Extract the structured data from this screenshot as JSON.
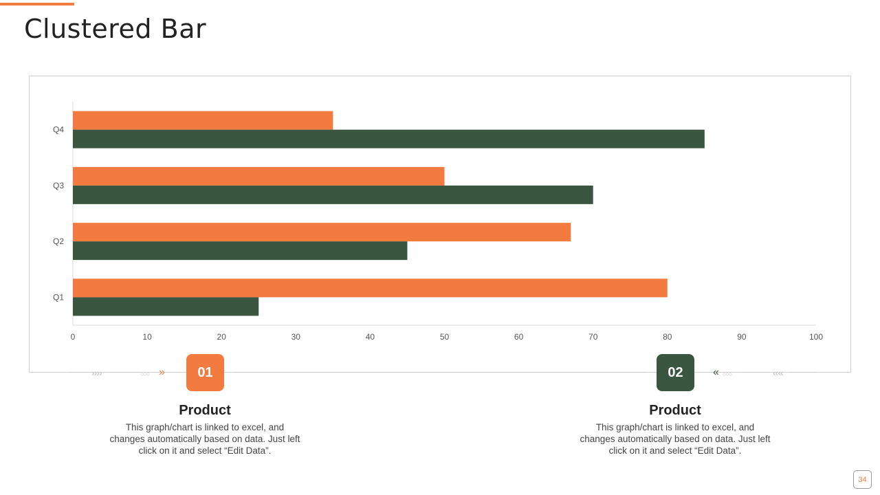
{
  "slide": {
    "title": "Clustered Bar",
    "page_number": "34"
  },
  "colors": {
    "accent": "#F47B3F",
    "dark": "#3A5640",
    "gridline": "#d9d9d9",
    "frame": "#cfcfcf"
  },
  "chart_data": {
    "type": "bar",
    "orientation": "horizontal",
    "categories": [
      "Q1",
      "Q2",
      "Q3",
      "Q4"
    ],
    "series": [
      {
        "values": [
          80,
          67,
          50,
          35
        ],
        "color": "#F47B3F"
      },
      {
        "values": [
          25,
          45,
          70,
          85
        ],
        "color": "#3A5640"
      }
    ],
    "xlim": [
      0,
      100
    ],
    "xticks": [
      0,
      10,
      20,
      30,
      40,
      50,
      60,
      70,
      80,
      90,
      100
    ],
    "title": "",
    "xlabel": "",
    "ylabel": "",
    "grid": false
  },
  "products": [
    {
      "number": "01",
      "title": "Product",
      "description": "This graph/chart is linked to excel, and changes automatically based on data. Just left click on it and select “Edit Data”."
    },
    {
      "number": "02",
      "title": "Product",
      "description": "This graph/chart is linked to excel, and changes automatically based on data. Just left click on it and select “Edit Data”."
    }
  ],
  "decorations": {
    "left_arrows": "››››",
    "left_circles": "○○○",
    "left_chevron": "»",
    "right_chevron": "«",
    "right_circles": "○○○",
    "right_arrows": "‹‹‹‹"
  }
}
